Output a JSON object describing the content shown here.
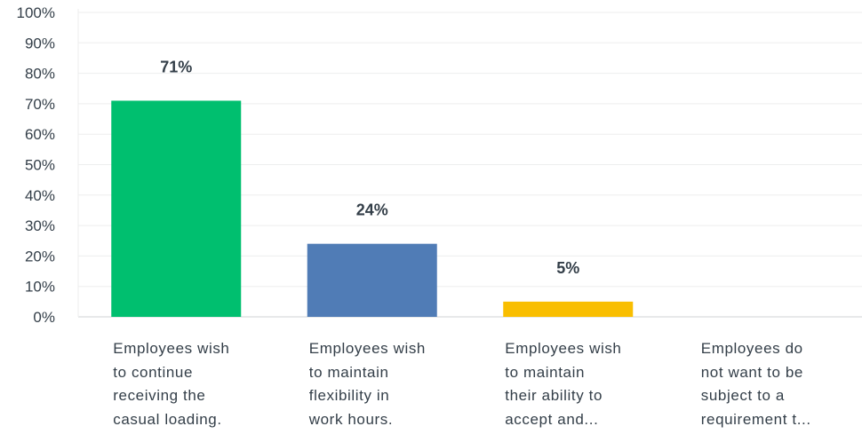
{
  "chart_data": {
    "type": "bar",
    "categories": [
      [
        "Employees wish",
        "to continue",
        "receiving the",
        "casual loading."
      ],
      [
        "Employees wish",
        "to maintain",
        "flexibility in",
        "work hours."
      ],
      [
        "Employees wish",
        "to maintain",
        "their ability to",
        "accept and..."
      ],
      [
        "Employees do",
        "not want to be",
        "subject to a",
        "requirement t..."
      ]
    ],
    "values": [
      71,
      24,
      5,
      0
    ],
    "data_labels": [
      "71%",
      "24%",
      "5%",
      ""
    ],
    "bar_colors": [
      "#00bf6f",
      "#507cb6",
      "#f9be00",
      "#6bc8cd"
    ],
    "ylim": [
      0,
      100
    ],
    "yticks": [
      "0%",
      "10%",
      "20%",
      "30%",
      "40%",
      "50%",
      "60%",
      "70%",
      "80%",
      "90%",
      "100%"
    ],
    "grid": true,
    "title": "",
    "xlabel": "",
    "ylabel": ""
  }
}
